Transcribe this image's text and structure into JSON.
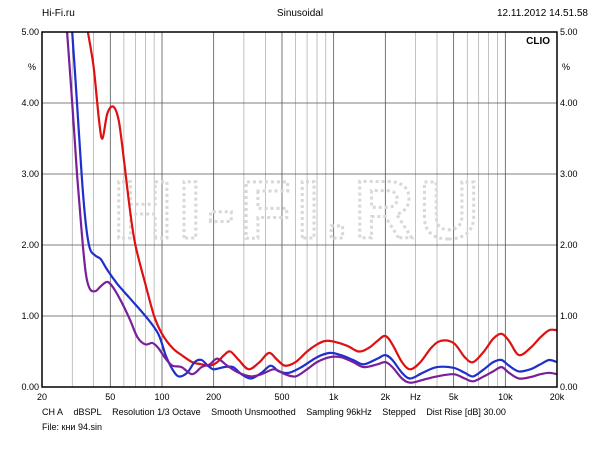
{
  "header": {
    "left": "Hi-Fi.ru",
    "center": "Sinusoidal",
    "right": "12.11.2012 14.51.58"
  },
  "watermark": "HI-FI.RU",
  "brand": "CLIO",
  "footer": {
    "settings": [
      "CH A",
      "dBSPL",
      "Resolution 1/3 Octave",
      "Smooth Unsmoothed",
      "Sampling 96kHz",
      "Stepped",
      "Dist Rise [dB] 30.00"
    ],
    "file": "File: кни 94.sin"
  },
  "chart_data": {
    "type": "line",
    "title": "Sinusoidal",
    "xlabel": "Hz",
    "ylabel": "%",
    "xscale": "log",
    "xlim": [
      20,
      20000
    ],
    "ylim": [
      0,
      5
    ],
    "x_ticks": [
      20,
      50,
      100,
      200,
      500,
      1000,
      2000,
      5000,
      10000,
      20000
    ],
    "x_tick_labels": [
      "20",
      "50",
      "100",
      "200",
      "500",
      "1k",
      "2k",
      "5k",
      "10k",
      "20k"
    ],
    "y_ticks": [
      0,
      1,
      2,
      3,
      4,
      5
    ],
    "y_tick_labels": [
      "0.00",
      "1.00",
      "2.00",
      "3.00",
      "4.00",
      "5.00"
    ],
    "grid": true,
    "series": [
      {
        "name": "red",
        "color": "#dd1111",
        "points": [
          [
            37,
            5.0
          ],
          [
            40,
            4.5
          ],
          [
            43,
            3.75
          ],
          [
            45,
            3.5
          ],
          [
            48,
            3.85
          ],
          [
            52,
            3.95
          ],
          [
            56,
            3.75
          ],
          [
            60,
            3.2
          ],
          [
            65,
            2.5
          ],
          [
            70,
            2.0
          ],
          [
            80,
            1.45
          ],
          [
            90,
            1.0
          ],
          [
            100,
            0.75
          ],
          [
            115,
            0.55
          ],
          [
            130,
            0.45
          ],
          [
            150,
            0.35
          ],
          [
            170,
            0.32
          ],
          [
            190,
            0.3
          ],
          [
            210,
            0.35
          ],
          [
            230,
            0.45
          ],
          [
            250,
            0.5
          ],
          [
            280,
            0.38
          ],
          [
            320,
            0.25
          ],
          [
            370,
            0.35
          ],
          [
            420,
            0.48
          ],
          [
            470,
            0.38
          ],
          [
            520,
            0.3
          ],
          [
            600,
            0.35
          ],
          [
            700,
            0.5
          ],
          [
            800,
            0.6
          ],
          [
            900,
            0.65
          ],
          [
            1000,
            0.64
          ],
          [
            1200,
            0.58
          ],
          [
            1400,
            0.5
          ],
          [
            1600,
            0.55
          ],
          [
            1800,
            0.65
          ],
          [
            2000,
            0.72
          ],
          [
            2200,
            0.6
          ],
          [
            2500,
            0.35
          ],
          [
            2800,
            0.25
          ],
          [
            3200,
            0.35
          ],
          [
            3700,
            0.55
          ],
          [
            4200,
            0.65
          ],
          [
            5000,
            0.62
          ],
          [
            5800,
            0.42
          ],
          [
            6500,
            0.35
          ],
          [
            7500,
            0.5
          ],
          [
            8500,
            0.68
          ],
          [
            9500,
            0.75
          ],
          [
            10500,
            0.65
          ],
          [
            12000,
            0.45
          ],
          [
            14000,
            0.55
          ],
          [
            16000,
            0.7
          ],
          [
            18000,
            0.8
          ],
          [
            20000,
            0.8
          ]
        ]
      },
      {
        "name": "blue",
        "color": "#1f2fcc",
        "points": [
          [
            30,
            5.0
          ],
          [
            32,
            4.0
          ],
          [
            34,
            3.0
          ],
          [
            36,
            2.3
          ],
          [
            38,
            1.95
          ],
          [
            41,
            1.85
          ],
          [
            44,
            1.8
          ],
          [
            48,
            1.65
          ],
          [
            55,
            1.45
          ],
          [
            65,
            1.25
          ],
          [
            80,
            1.0
          ],
          [
            95,
            0.75
          ],
          [
            105,
            0.45
          ],
          [
            115,
            0.25
          ],
          [
            125,
            0.15
          ],
          [
            140,
            0.2
          ],
          [
            155,
            0.35
          ],
          [
            170,
            0.38
          ],
          [
            185,
            0.3
          ],
          [
            200,
            0.25
          ],
          [
            230,
            0.28
          ],
          [
            260,
            0.28
          ],
          [
            290,
            0.18
          ],
          [
            330,
            0.12
          ],
          [
            380,
            0.2
          ],
          [
            430,
            0.3
          ],
          [
            480,
            0.22
          ],
          [
            550,
            0.2
          ],
          [
            650,
            0.28
          ],
          [
            800,
            0.42
          ],
          [
            950,
            0.48
          ],
          [
            1100,
            0.45
          ],
          [
            1300,
            0.38
          ],
          [
            1500,
            0.32
          ],
          [
            1800,
            0.4
          ],
          [
            2000,
            0.45
          ],
          [
            2200,
            0.38
          ],
          [
            2500,
            0.2
          ],
          [
            2800,
            0.12
          ],
          [
            3300,
            0.2
          ],
          [
            4000,
            0.28
          ],
          [
            5000,
            0.27
          ],
          [
            5800,
            0.2
          ],
          [
            6500,
            0.15
          ],
          [
            7500,
            0.25
          ],
          [
            8500,
            0.35
          ],
          [
            9500,
            0.38
          ],
          [
            10500,
            0.3
          ],
          [
            12000,
            0.22
          ],
          [
            14000,
            0.25
          ],
          [
            16000,
            0.32
          ],
          [
            18000,
            0.38
          ],
          [
            20000,
            0.35
          ]
        ]
      },
      {
        "name": "purple",
        "color": "#7a1f9a",
        "points": [
          [
            28,
            5.0
          ],
          [
            30,
            4.0
          ],
          [
            32,
            3.0
          ],
          [
            34,
            2.2
          ],
          [
            36,
            1.6
          ],
          [
            38,
            1.38
          ],
          [
            41,
            1.35
          ],
          [
            44,
            1.42
          ],
          [
            48,
            1.48
          ],
          [
            52,
            1.4
          ],
          [
            58,
            1.2
          ],
          [
            65,
            0.95
          ],
          [
            72,
            0.7
          ],
          [
            80,
            0.6
          ],
          [
            88,
            0.62
          ],
          [
            95,
            0.55
          ],
          [
            105,
            0.4
          ],
          [
            115,
            0.3
          ],
          [
            130,
            0.28
          ],
          [
            150,
            0.18
          ],
          [
            170,
            0.28
          ],
          [
            190,
            0.32
          ],
          [
            210,
            0.4
          ],
          [
            240,
            0.3
          ],
          [
            280,
            0.2
          ],
          [
            330,
            0.15
          ],
          [
            380,
            0.18
          ],
          [
            450,
            0.25
          ],
          [
            520,
            0.18
          ],
          [
            600,
            0.15
          ],
          [
            700,
            0.25
          ],
          [
            800,
            0.35
          ],
          [
            950,
            0.42
          ],
          [
            1100,
            0.42
          ],
          [
            1300,
            0.35
          ],
          [
            1500,
            0.28
          ],
          [
            1800,
            0.32
          ],
          [
            2000,
            0.35
          ],
          [
            2200,
            0.28
          ],
          [
            2500,
            0.12
          ],
          [
            2800,
            0.06
          ],
          [
            3300,
            0.1
          ],
          [
            4000,
            0.15
          ],
          [
            5000,
            0.18
          ],
          [
            5800,
            0.12
          ],
          [
            6500,
            0.08
          ],
          [
            7500,
            0.15
          ],
          [
            8500,
            0.22
          ],
          [
            9500,
            0.28
          ],
          [
            10500,
            0.2
          ],
          [
            12000,
            0.12
          ],
          [
            14000,
            0.14
          ],
          [
            16000,
            0.18
          ],
          [
            18000,
            0.2
          ],
          [
            20000,
            0.18
          ]
        ]
      }
    ]
  }
}
